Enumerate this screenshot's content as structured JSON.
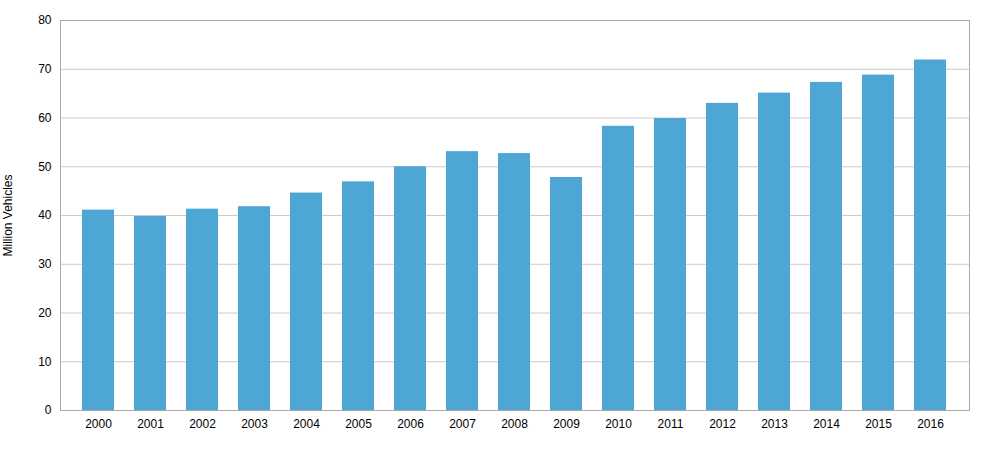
{
  "chart_data": {
    "type": "bar",
    "categories": [
      "2000",
      "2001",
      "2002",
      "2003",
      "2004",
      "2005",
      "2006",
      "2007",
      "2008",
      "2009",
      "2010",
      "2011",
      "2012",
      "2013",
      "2014",
      "2015",
      "2016"
    ],
    "values": [
      41.1,
      39.8,
      41.3,
      41.8,
      44.6,
      46.9,
      50.0,
      53.1,
      52.7,
      47.8,
      58.3,
      59.9,
      63.0,
      65.1,
      67.3,
      68.8,
      71.9
    ],
    "color": "#4da6d4",
    "ylabel": "Million Vehicles",
    "ylim": [
      0,
      80
    ],
    "yticks": [
      0,
      10,
      20,
      30,
      40,
      50,
      60,
      70,
      80
    ],
    "grid": true
  }
}
